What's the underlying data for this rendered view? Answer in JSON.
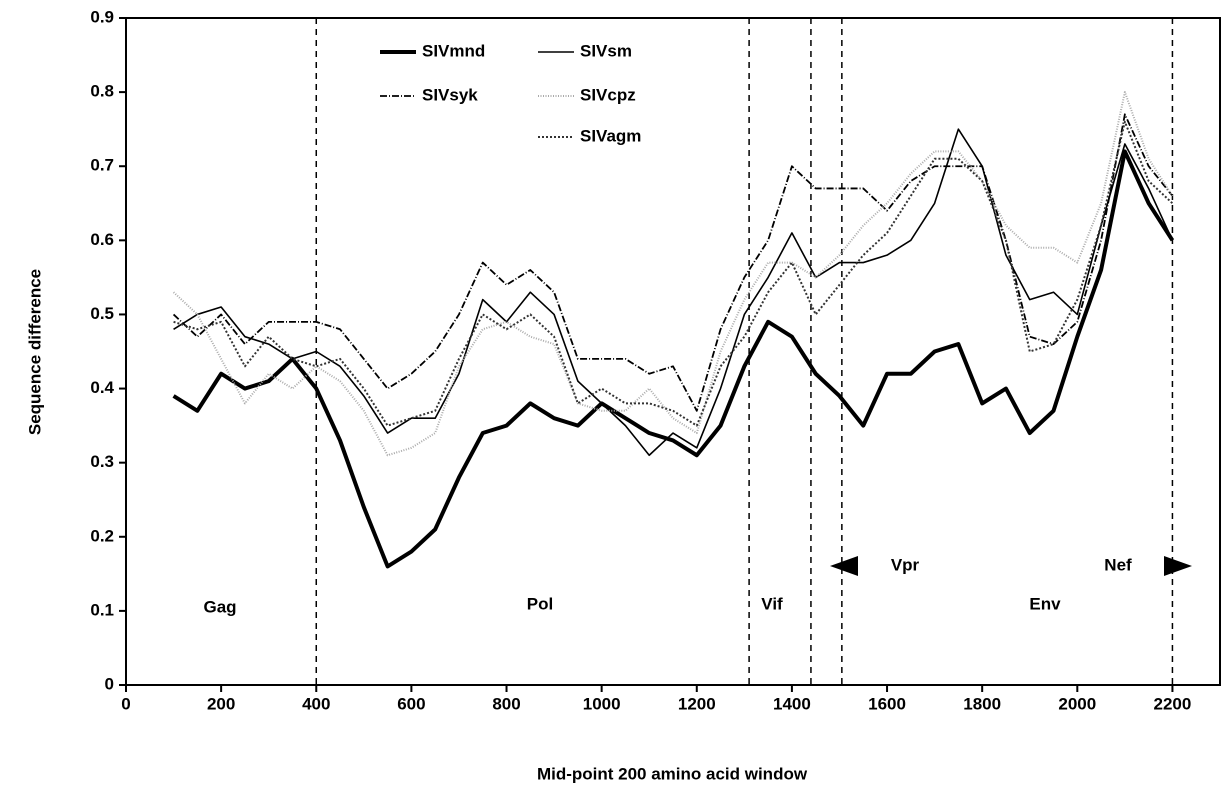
{
  "chart_data": {
    "type": "line",
    "x_label": "Mid-point 200 amino acid window",
    "y_label": "Sequence difference",
    "x": [
      100,
      150,
      200,
      250,
      300,
      350,
      400,
      450,
      500,
      550,
      600,
      650,
      700,
      750,
      800,
      850,
      900,
      950,
      1000,
      1050,
      1100,
      1150,
      1200,
      1250,
      1300,
      1350,
      1400,
      1450,
      1500,
      1550,
      1600,
      1650,
      1700,
      1750,
      1800,
      1850,
      1900,
      1950,
      2000,
      2050,
      2100,
      2150,
      2200
    ],
    "series": [
      {
        "name": "SIVmnd",
        "color": "#000000",
        "values": [
          0.39,
          0.37,
          0.42,
          0.4,
          0.41,
          0.44,
          0.4,
          0.33,
          0.24,
          0.16,
          0.18,
          0.21,
          0.28,
          0.34,
          0.35,
          0.38,
          0.36,
          0.35,
          0.38,
          0.36,
          0.34,
          0.33,
          0.31,
          0.35,
          0.43,
          0.49,
          0.47,
          0.42,
          0.39,
          0.35,
          0.42,
          0.42,
          0.45,
          0.46,
          0.38,
          0.4,
          0.34,
          0.37,
          0.47,
          0.56,
          0.72,
          0.65,
          0.6
        ]
      },
      {
        "name": "SIVsm",
        "color": "#000000",
        "values": [
          0.48,
          0.5,
          0.51,
          0.47,
          0.46,
          0.44,
          0.45,
          0.43,
          0.39,
          0.34,
          0.36,
          0.36,
          0.42,
          0.52,
          0.49,
          0.53,
          0.5,
          0.41,
          0.38,
          0.35,
          0.31,
          0.34,
          0.32,
          0.4,
          0.5,
          0.55,
          0.61,
          0.55,
          0.57,
          0.57,
          0.58,
          0.6,
          0.65,
          0.75,
          0.7,
          0.58,
          0.52,
          0.53,
          0.5,
          0.62,
          0.73,
          0.67,
          0.6
        ]
      },
      {
        "name": "SIVsyk",
        "color": "#000000",
        "values": [
          0.5,
          0.47,
          0.5,
          0.46,
          0.49,
          0.49,
          0.49,
          0.48,
          0.44,
          0.4,
          0.42,
          0.45,
          0.5,
          0.57,
          0.54,
          0.56,
          0.53,
          0.44,
          0.44,
          0.44,
          0.42,
          0.43,
          0.37,
          0.48,
          0.55,
          0.6,
          0.7,
          0.67,
          0.67,
          0.67,
          0.64,
          0.68,
          0.7,
          0.7,
          0.7,
          0.6,
          0.47,
          0.46,
          0.49,
          0.6,
          0.77,
          0.7,
          0.66
        ]
      },
      {
        "name": "SIVcpz",
        "color": "#aaaaaa",
        "values": [
          0.53,
          0.5,
          0.44,
          0.38,
          0.42,
          0.4,
          0.43,
          0.41,
          0.37,
          0.31,
          0.32,
          0.34,
          0.43,
          0.48,
          0.49,
          0.47,
          0.46,
          0.38,
          0.37,
          0.37,
          0.4,
          0.36,
          0.34,
          0.45,
          0.52,
          0.57,
          0.57,
          0.55,
          0.58,
          0.62,
          0.65,
          0.69,
          0.72,
          0.72,
          0.68,
          0.62,
          0.59,
          0.59,
          0.57,
          0.65,
          0.8,
          0.71,
          0.66
        ]
      },
      {
        "name": "SIVagm",
        "color": "#333333",
        "values": [
          0.49,
          0.48,
          0.49,
          0.43,
          0.47,
          0.44,
          0.43,
          0.44,
          0.4,
          0.35,
          0.36,
          0.37,
          0.44,
          0.5,
          0.48,
          0.5,
          0.47,
          0.38,
          0.4,
          0.38,
          0.38,
          0.37,
          0.35,
          0.43,
          0.47,
          0.53,
          0.57,
          0.5,
          0.54,
          0.58,
          0.61,
          0.66,
          0.71,
          0.71,
          0.68,
          0.6,
          0.45,
          0.46,
          0.52,
          0.62,
          0.76,
          0.68,
          0.65
        ]
      }
    ],
    "boundaries": [
      400,
      1310,
      1440,
      1505,
      2200
    ],
    "annotations": [
      "Gag",
      "Pol",
      "Vif",
      "Env",
      "Vpr",
      "Nef"
    ],
    "xlim": [
      0,
      2300
    ],
    "xticks": [
      0,
      200,
      400,
      600,
      800,
      1000,
      1200,
      1400,
      1600,
      1800,
      2000,
      2200
    ],
    "ylim": [
      0,
      0.9
    ],
    "yticks": [
      0,
      0.1,
      0.2,
      0.3,
      0.4,
      0.5,
      0.6,
      0.7,
      0.8,
      0.9
    ]
  }
}
